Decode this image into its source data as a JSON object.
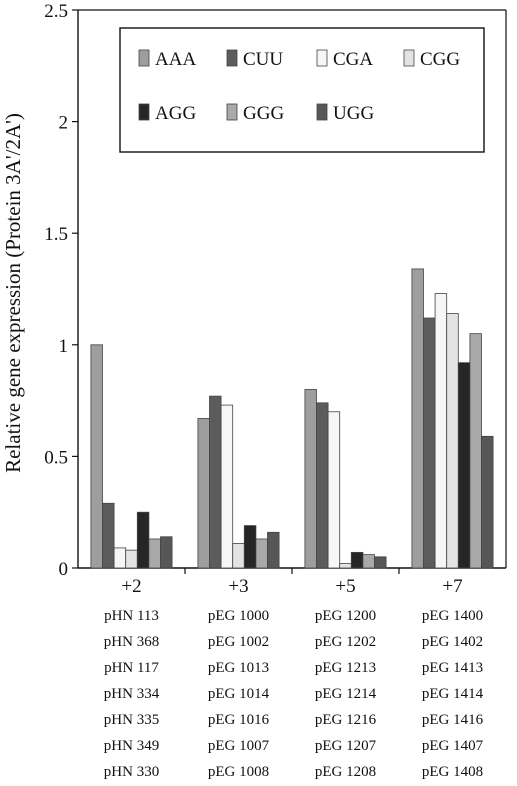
{
  "chart_data": {
    "type": "bar",
    "title": "",
    "xlabel": "",
    "ylabel": "Relative gene expression (Protein 3A'/2A')",
    "ylim": [
      0,
      2.5
    ],
    "yticks": [
      "0",
      "0.5",
      "1",
      "1.5",
      "2",
      "2.5"
    ],
    "grid": false,
    "legend_position": "top",
    "categories": [
      "+2",
      "+3",
      "+5",
      "+7"
    ],
    "series": [
      {
        "name": "AAA",
        "color": "#9e9e9e",
        "values": [
          1.0,
          0.67,
          0.8,
          1.34
        ]
      },
      {
        "name": "CUU",
        "color": "#5c5c5c",
        "values": [
          0.29,
          0.77,
          0.74,
          1.12
        ]
      },
      {
        "name": "CGA",
        "color": "#f6f6f6",
        "values": [
          0.09,
          0.73,
          0.7,
          1.23
        ]
      },
      {
        "name": "CGG",
        "color": "#e3e3e3",
        "values": [
          0.08,
          0.11,
          0.02,
          1.14
        ]
      },
      {
        "name": "AGG",
        "color": "#262626",
        "values": [
          0.25,
          0.19,
          0.07,
          0.92
        ]
      },
      {
        "name": "GGG",
        "color": "#a9a9a9",
        "values": [
          0.13,
          0.13,
          0.06,
          1.05
        ]
      },
      {
        "name": "UGG",
        "color": "#575757",
        "values": [
          0.14,
          0.16,
          0.05,
          0.59
        ]
      }
    ],
    "plasmids": [
      [
        "pHN 113",
        "pHN 368",
        "pHN 117",
        "pHN 334",
        "pHN 335",
        "pHN 349",
        "pHN 330"
      ],
      [
        "pEG 1000",
        "pEG 1002",
        "pEG 1013",
        "pEG 1014",
        "pEG 1016",
        "pEG 1007",
        "pEG 1008"
      ],
      [
        "pEG 1200",
        "pEG 1202",
        "pEG 1213",
        "pEG 1214",
        "pEG 1216",
        "pEG 1207",
        "pEG 1208"
      ],
      [
        "pEG 1400",
        "pEG 1402",
        "pEG 1413",
        "pEG 1414",
        "pEG 1416",
        "pEG 1407",
        "pEG 1408"
      ]
    ]
  }
}
